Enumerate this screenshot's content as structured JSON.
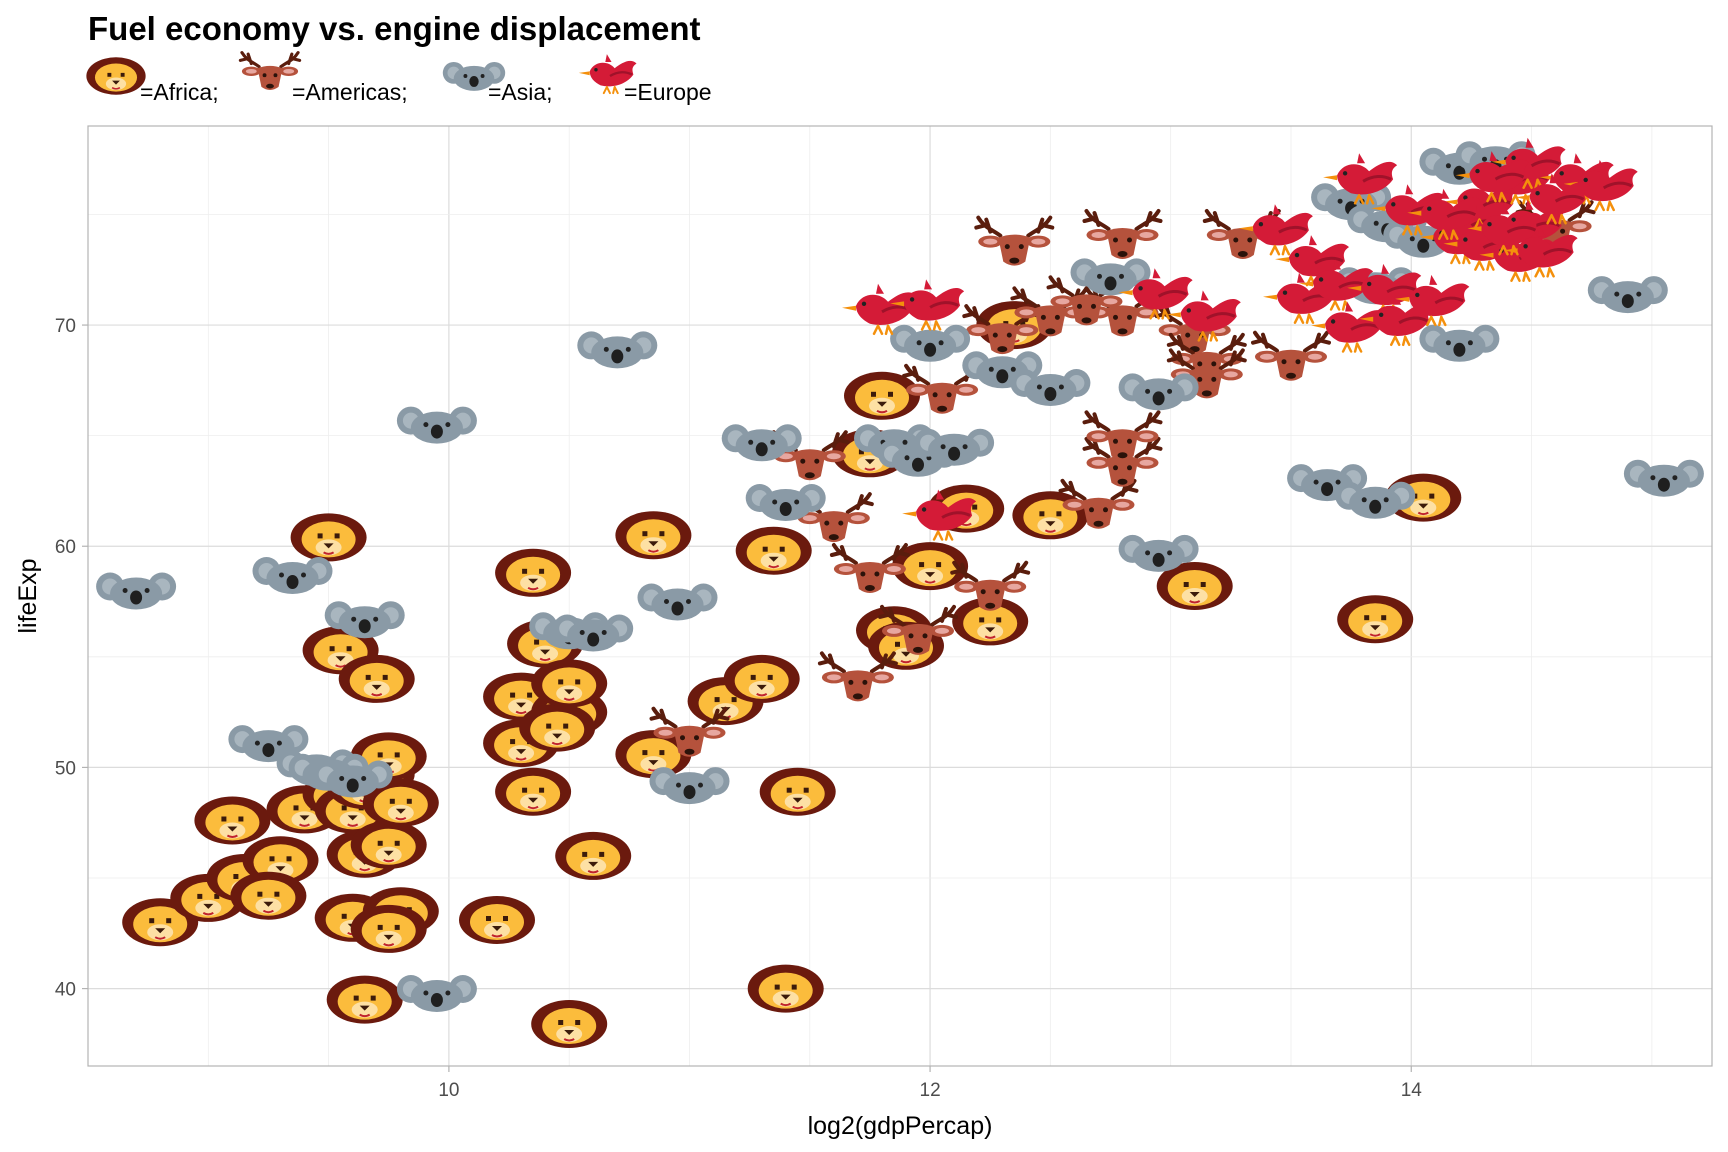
{
  "chart_data": {
    "type": "scatter",
    "title": "Fuel economy vs. engine displacement",
    "xlabel": "log2(gdpPercap)",
    "ylabel": "lifeExp",
    "xlim": [
      8.5,
      15.25
    ],
    "ylim": [
      36.5,
      79
    ],
    "x_ticks": [
      10,
      12,
      14
    ],
    "y_ticks": [
      40,
      50,
      60,
      70
    ],
    "grid": true,
    "legend_position": "top-left",
    "legend": [
      {
        "key": "africa",
        "icon": "lion-icon",
        "label": "=Africa;"
      },
      {
        "key": "americas",
        "icon": "deer-icon",
        "label": "=Americas;"
      },
      {
        "key": "asia",
        "icon": "koala-icon",
        "label": "=Asia;"
      },
      {
        "key": "europe",
        "icon": "bird-icon",
        "label": "=Europe"
      }
    ],
    "colors": {
      "africa_mane": "#6b1a0e",
      "africa_face": "#fbbc3c",
      "americas": "#b5523c",
      "americas_antler": "#5a1d0d",
      "asia": "#8a9aa6",
      "europe": "#d41b37",
      "gridline": "#e3e3e3",
      "panel_border": "#b3b3b3"
    },
    "series": [
      {
        "name": "=Africa;",
        "icon": "lion-icon",
        "points": [
          [
            8.8,
            43
          ],
          [
            9.0,
            44.1
          ],
          [
            9.15,
            45
          ],
          [
            9.1,
            47.6
          ],
          [
            9.3,
            45.8
          ],
          [
            9.25,
            44.2
          ],
          [
            9.4,
            48.1
          ],
          [
            9.55,
            48.8
          ],
          [
            9.6,
            48.1
          ],
          [
            9.65,
            49.2
          ],
          [
            9.7,
            49.7
          ],
          [
            9.75,
            50.5
          ],
          [
            9.55,
            55.3
          ],
          [
            9.7,
            54
          ],
          [
            9.5,
            60.4
          ],
          [
            9.65,
            46.1
          ],
          [
            9.75,
            46.5
          ],
          [
            9.8,
            48.4
          ],
          [
            9.6,
            43.2
          ],
          [
            9.8,
            43.5
          ],
          [
            9.75,
            42.7
          ],
          [
            10.2,
            43.1
          ],
          [
            9.65,
            39.5
          ],
          [
            10.35,
            48.9
          ],
          [
            10.3,
            51.1
          ],
          [
            10.3,
            53.2
          ],
          [
            10.5,
            52.5
          ],
          [
            10.45,
            51.8
          ],
          [
            10.4,
            55.6
          ],
          [
            10.5,
            53.8
          ],
          [
            10.35,
            58.8
          ],
          [
            10.6,
            46
          ],
          [
            10.5,
            38.4
          ],
          [
            10.85,
            60.5
          ],
          [
            10.85,
            50.6
          ],
          [
            11.15,
            53
          ],
          [
            11.3,
            54
          ],
          [
            11.35,
            59.8
          ],
          [
            11.45,
            48.9
          ],
          [
            11.4,
            40
          ],
          [
            11.75,
            64.2
          ],
          [
            11.8,
            66.8
          ],
          [
            11.85,
            56.2
          ],
          [
            11.9,
            55.5
          ],
          [
            12.0,
            59.1
          ],
          [
            12.15,
            61.7
          ],
          [
            12.25,
            56.6
          ],
          [
            12.35,
            70
          ],
          [
            12.5,
            61.4
          ],
          [
            13.1,
            58.2
          ],
          [
            13.85,
            56.7
          ],
          [
            14.05,
            62.2
          ]
        ]
      },
      {
        "name": "=Americas;",
        "icon": "deer-icon",
        "points": [
          [
            11.0,
            51.3
          ],
          [
            11.5,
            63.8
          ],
          [
            11.6,
            61
          ],
          [
            11.7,
            53.8
          ],
          [
            11.75,
            58.7
          ],
          [
            11.95,
            55.9
          ],
          [
            12.05,
            66.8
          ],
          [
            12.25,
            57.9
          ],
          [
            12.35,
            73.5
          ],
          [
            12.3,
            69.5
          ],
          [
            12.5,
            70.3
          ],
          [
            12.7,
            61.6
          ],
          [
            12.8,
            63.5
          ],
          [
            12.8,
            64.7
          ],
          [
            12.8,
            70.3
          ],
          [
            12.65,
            70.8
          ],
          [
            12.8,
            73.8
          ],
          [
            13.1,
            69.5
          ],
          [
            13.15,
            68.2
          ],
          [
            13.15,
            67.5
          ],
          [
            13.3,
            73.8
          ],
          [
            13.5,
            68.3
          ],
          [
            14.6,
            74.2
          ]
        ]
      },
      {
        "name": "=Asia;",
        "icon": "asia-koala-icon",
        "points": [
          [
            8.7,
            58
          ],
          [
            9.35,
            58.7
          ],
          [
            9.65,
            56.7
          ],
          [
            9.25,
            51.1
          ],
          [
            9.45,
            50
          ],
          [
            9.5,
            49.8
          ],
          [
            9.6,
            49.5
          ],
          [
            9.95,
            65.5
          ],
          [
            9.95,
            39.8
          ],
          [
            10.5,
            56.2
          ],
          [
            10.6,
            56.1
          ],
          [
            10.7,
            68.9
          ],
          [
            10.95,
            57.5
          ],
          [
            11.0,
            49.2
          ],
          [
            11.3,
            64.7
          ],
          [
            11.4,
            62
          ],
          [
            11.85,
            64.7
          ],
          [
            11.95,
            64
          ],
          [
            12.0,
            69.2
          ],
          [
            12.1,
            64.5
          ],
          [
            12.3,
            68
          ],
          [
            12.5,
            67.2
          ],
          [
            12.75,
            72.2
          ],
          [
            12.95,
            67
          ],
          [
            12.95,
            59.7
          ],
          [
            13.65,
            62.9
          ],
          [
            13.85,
            62.1
          ],
          [
            13.85,
            71.8
          ],
          [
            13.75,
            75.6
          ],
          [
            13.9,
            74.6
          ],
          [
            14.05,
            73.9
          ],
          [
            14.2,
            69.2
          ],
          [
            14.2,
            77.2
          ],
          [
            14.35,
            77.5
          ],
          [
            14.9,
            71.4
          ],
          [
            15.05,
            63.1
          ]
        ]
      },
      {
        "name": "=Europe",
        "icon": "bird-icon",
        "points": [
          [
            11.8,
            70.6
          ],
          [
            12.0,
            70.8
          ],
          [
            12.05,
            61.3
          ],
          [
            12.95,
            71.3
          ],
          [
            13.15,
            70.3
          ],
          [
            13.45,
            74.2
          ],
          [
            13.6,
            72.8
          ],
          [
            13.55,
            71.1
          ],
          [
            13.7,
            71.7
          ],
          [
            13.75,
            69.8
          ],
          [
            13.9,
            71.5
          ],
          [
            13.95,
            70.1
          ],
          [
            14.1,
            71
          ],
          [
            13.8,
            76.5
          ],
          [
            14.0,
            75.1
          ],
          [
            14.2,
            73.8
          ],
          [
            14.25,
            74.5
          ],
          [
            14.3,
            75.4
          ],
          [
            14.45,
            76.5
          ],
          [
            14.5,
            77.2
          ],
          [
            14.5,
            74.4
          ],
          [
            14.3,
            73.5
          ],
          [
            14.45,
            73
          ],
          [
            14.7,
            76.5
          ],
          [
            14.8,
            76.2
          ],
          [
            14.6,
            75.6
          ],
          [
            14.4,
            74.2
          ],
          [
            14.55,
            73.2
          ],
          [
            14.15,
            74.9
          ],
          [
            14.35,
            76.6
          ]
        ]
      }
    ]
  }
}
